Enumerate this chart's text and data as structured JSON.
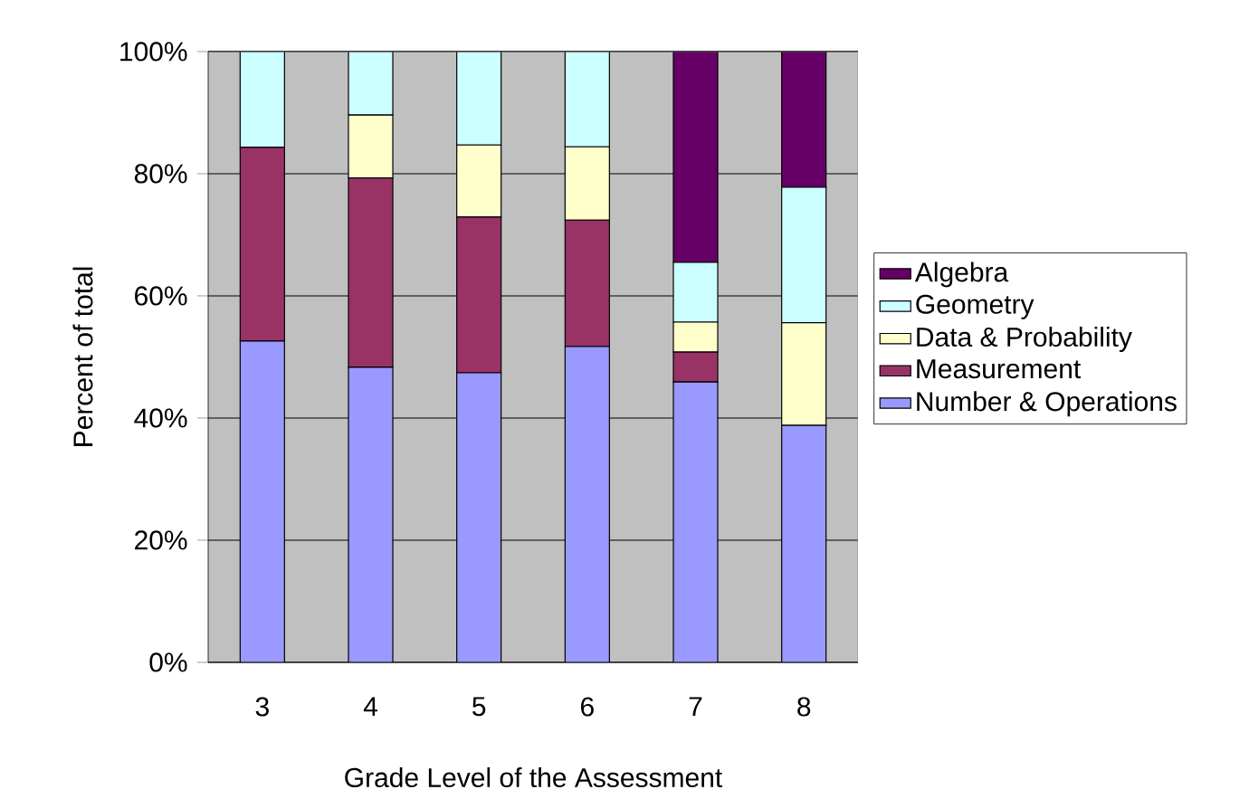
{
  "chart_data": {
    "type": "bar",
    "stacked": true,
    "xlabel": "Grade Level of the Assessment",
    "ylabel": "Percent of total",
    "categories": [
      "3",
      "4",
      "5",
      "6",
      "7",
      "8"
    ],
    "series": [
      {
        "name": "Number & Operations",
        "color": "#9999ff",
        "values": [
          52.6,
          48.3,
          47.4,
          51.7,
          45.9,
          38.8
        ]
      },
      {
        "name": "Measurement",
        "color": "#993366",
        "values": [
          31.7,
          31.0,
          25.5,
          20.7,
          4.9,
          0
        ]
      },
      {
        "name": "Data & Probability",
        "color": "#ffffcc",
        "values": [
          0,
          10.3,
          11.8,
          12.0,
          4.9,
          16.8
        ]
      },
      {
        "name": "Geometry",
        "color": "#ccffff",
        "values": [
          15.7,
          10.4,
          15.3,
          15.6,
          9.8,
          22.2
        ]
      },
      {
        "name": "Algebra",
        "color": "#660066",
        "values": [
          0,
          0,
          0,
          0,
          34.5,
          22.2
        ]
      }
    ],
    "ylim": [
      0,
      100
    ],
    "yticks": [
      {
        "value": 0,
        "label": "0%"
      },
      {
        "value": 20,
        "label": "20%"
      },
      {
        "value": 40,
        "label": "40%"
      },
      {
        "value": 60,
        "label": "60%"
      },
      {
        "value": 80,
        "label": "80%"
      },
      {
        "value": 100,
        "label": "100%"
      }
    ],
    "grid": "y",
    "legend": "right"
  }
}
